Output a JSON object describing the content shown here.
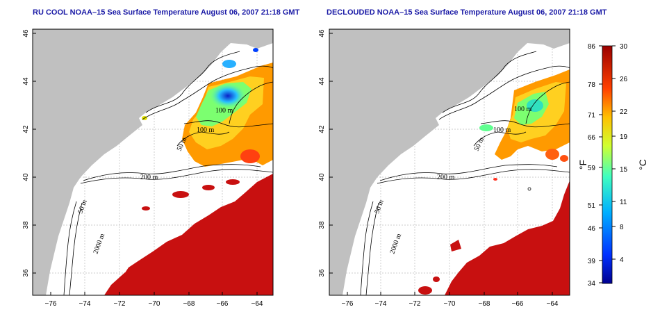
{
  "titles": {
    "left": "RU COOL NOAA–15 Sea Surface Temperature August 06, 2007 21:18 GMT",
    "right": "DECLOUDED NOAA–15 Sea Surface Temperature August 06, 2007 21:18 GMT"
  },
  "axes": {
    "lat_ticks": [
      "46",
      "44",
      "42",
      "40",
      "38",
      "36"
    ],
    "lon_ticks": [
      "−76",
      "−74",
      "−72",
      "−70",
      "−68",
      "−66",
      "−64"
    ]
  },
  "contour_labels": [
    "100 m",
    "100 m",
    "50 m",
    "200 m",
    "50 m",
    "2000 m"
  ],
  "colorbar": {
    "fahrenheit": [
      "86",
      "78",
      "71",
      "66",
      "59",
      "51",
      "46",
      "39",
      "34"
    ],
    "celsius": [
      "30",
      "26",
      "22",
      "19",
      "15",
      "11",
      "8",
      "4"
    ],
    "unit_f": "°F",
    "unit_c": "°C"
  },
  "colors": {
    "title": "#1a1aa6",
    "land": "#c0c0c0",
    "warm": "#c81010",
    "cold": "#0a0a9a"
  }
}
